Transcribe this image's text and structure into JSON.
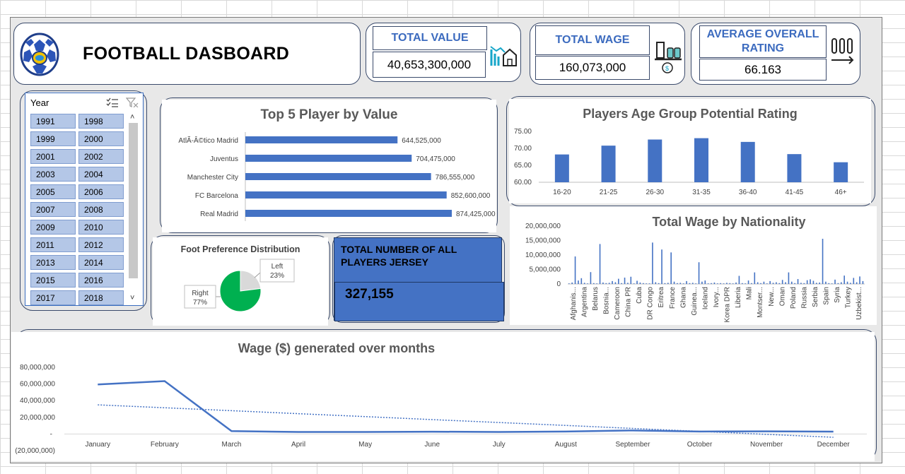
{
  "header": {
    "title": "FOOTBALL DASBOARD",
    "kpis": [
      {
        "label": "TOTAL VALUE",
        "value": "40,653,300,000",
        "icon": "house-chart-icon"
      },
      {
        "label": "TOTAL WAGE",
        "value": "160,073,000",
        "icon": "scale-money-icon"
      },
      {
        "label": "AVERAGE OVERALL RATING",
        "value": "66.163",
        "icon": "bars-arrow-icon"
      }
    ]
  },
  "slicer": {
    "title": "Year",
    "years": [
      "1991",
      "1998",
      "1999",
      "2000",
      "2001",
      "2002",
      "2003",
      "2004",
      "2005",
      "2006",
      "2007",
      "2008",
      "2009",
      "2010",
      "2011",
      "2012",
      "2013",
      "2014",
      "2015",
      "2016",
      "2017",
      "2018"
    ]
  },
  "jersey": {
    "label": "TOTAL  NUMBER OF ALL PLAYERS JERSEY",
    "value": "327,155"
  },
  "colors": {
    "accent": "#4472c4",
    "green": "#00b050",
    "grey": "#d9d9d9"
  },
  "chart_data": [
    {
      "type": "bar",
      "orientation": "horizontal",
      "title": "Top 5 Player by Value",
      "categories": [
        "AtlÃ-Â©tico Madrid",
        "Juventus",
        "Manchester City",
        "FC Barcelona",
        "Real Madrid"
      ],
      "values": [
        644525000,
        704475000,
        786555000,
        852600000,
        874425000
      ],
      "value_labels": [
        "644,525,000",
        "704,475,000",
        "786,555,000",
        "852,600,000",
        "874,425,000"
      ]
    },
    {
      "type": "bar",
      "title": "Players Age Group Potential  Rating",
      "categories": [
        "16-20",
        "21-25",
        "26-30",
        "31-35",
        "36-40",
        "41-45",
        "46+"
      ],
      "values": [
        68.2,
        70.8,
        72.6,
        73.0,
        71.9,
        68.3,
        65.9
      ],
      "ylim": [
        60,
        75
      ],
      "yticks": [
        "60.00",
        "65.00",
        "70.00",
        "75.00"
      ],
      "grid": false
    },
    {
      "type": "pie",
      "title": "Foot Preference Distribution",
      "labels": [
        "Left",
        "Right"
      ],
      "values": [
        23,
        77
      ],
      "value_labels": [
        "23%",
        "77%"
      ]
    },
    {
      "type": "bar",
      "title": "Total Wage by Nationality",
      "tick_labels": [
        "Afghanis...",
        "Argentina",
        "Belarus",
        "Bosnia...",
        "Cameroon",
        "China PR",
        "Cuba",
        "DR Congo",
        "Eritrea",
        "France",
        "Ghana",
        "Guinea...",
        "Iceland",
        "Ivory...",
        "Korea DPR",
        "Liberia",
        "Mali",
        "Montser...",
        "New...",
        "Oman",
        "Poland",
        "Russia",
        "Serbia",
        "Spain",
        "Syria",
        "Turkey",
        "Uzbekist..."
      ],
      "values": [
        0.2,
        0.5,
        9.5,
        1.2,
        2.0,
        0.4,
        0.2,
        4.1,
        0.3,
        0.2,
        13.8,
        0.5,
        0.3,
        0.4,
        1.0,
        0.6,
        1.8,
        0.3,
        2.2,
        0.4,
        2.5,
        0.2,
        1.1,
        0.5,
        0.3,
        0.2,
        0.2,
        14.3,
        0.6,
        0.3,
        11.9,
        0.3,
        0.4,
        10.9,
        0.8,
        0.3,
        0.4,
        0.2,
        1.0,
        0.3,
        0.4,
        0.2,
        7.5,
        0.8,
        1.2,
        0.2,
        0.3,
        0.5,
        0.2,
        0.3,
        0.2,
        0.4,
        0.3,
        0.2,
        0.5,
        2.8,
        0.3,
        0.2,
        1.2,
        0.3,
        4.0,
        0.6,
        0.3,
        0.8,
        0.2,
        1.0,
        0.4,
        0.6,
        0.3,
        1.4,
        0.6,
        4.0,
        0.8,
        0.3,
        1.7,
        0.4,
        0.3,
        1.3,
        1.6,
        1.1,
        0.4,
        0.5,
        15.6,
        0.8,
        0.3,
        0.2,
        1.5,
        0.3,
        0.6,
        2.9,
        0.8,
        0.4,
        2.1,
        0.6,
        2.6,
        1.0
      ],
      "value_unit": "millions",
      "ylim": [
        0,
        20000000
      ],
      "yticks": [
        "0",
        "5,000,000",
        "10,000,000",
        "15,000,000",
        "20,000,000"
      ]
    },
    {
      "type": "line",
      "title": "Wage ($) generated over months",
      "categories": [
        "January",
        "February",
        "March",
        "April",
        "May",
        "June",
        "July",
        "August",
        "September",
        "October",
        "November",
        "December"
      ],
      "series": [
        {
          "values": [
            59500000,
            63500000,
            3500000,
            2500000,
            2500000,
            2800000,
            2500000,
            3000000,
            4300000,
            3000000,
            3200000,
            2900000
          ]
        },
        {
          "trendline": true,
          "values": [
            35000000,
            31500000,
            28000000,
            24400000,
            20900000,
            17300000,
            13800000,
            10300000,
            6700000,
            3200000,
            -400000,
            -3900000
          ]
        }
      ],
      "ylim": [
        -20000000,
        80000000
      ],
      "yticks": [
        "(20,000,000)",
        "-",
        "20,000,000",
        "40,000,000",
        "60,000,000",
        "80,000,000"
      ]
    }
  ]
}
